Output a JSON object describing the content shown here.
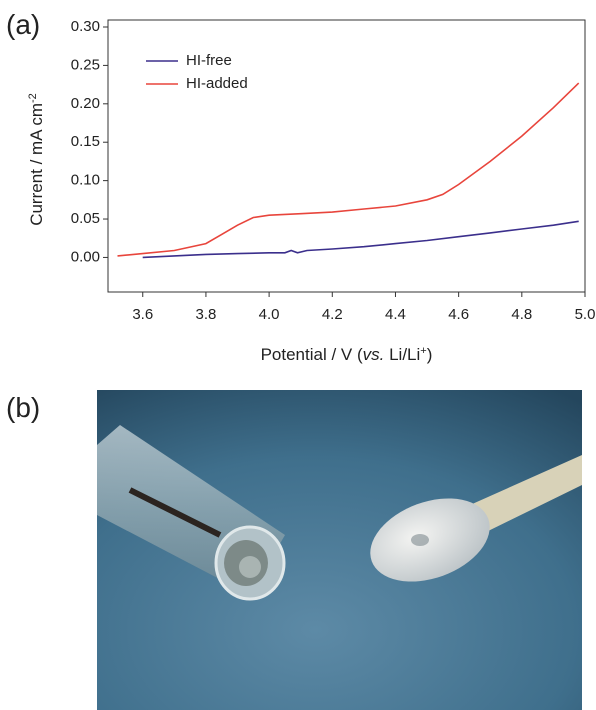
{
  "panel_labels": [
    "(a)",
    "(b)"
  ],
  "chart_data": {
    "type": "line",
    "ylabel": [
      {
        "text": "Current / mA cm",
        "style": "normal"
      },
      {
        "text": "-2",
        "style": "sup"
      }
    ],
    "xlabel": [
      {
        "text": "Potential / V (",
        "style": "normal"
      },
      {
        "text": "vs.",
        "style": "italic"
      },
      {
        "text": " Li/Li",
        "style": "normal"
      },
      {
        "text": "+",
        "style": "sup"
      },
      {
        "text": ")",
        "style": "normal"
      }
    ],
    "xlim": [
      3.49,
      5.0
    ],
    "ylim": [
      -0.045,
      0.3
    ],
    "xticks": [
      3.6,
      3.8,
      {
        "value": 4.0,
        "label": "4.0"
      },
      4.2,
      4.4,
      4.6,
      4.8,
      {
        "value": 5.0,
        "label": "5.0"
      }
    ],
    "yticks": [
      {
        "value": 0,
        "label": "0.00"
      },
      {
        "value": 0.05,
        "label": "0.05"
      },
      {
        "value": 0.1,
        "label": "0.10"
      },
      {
        "value": 0.15,
        "label": "0.15"
      },
      {
        "value": 0.2,
        "label": "0.20"
      },
      {
        "value": 0.25,
        "label": "0.25"
      },
      {
        "value": 0.3,
        "label": "0.30"
      }
    ],
    "grid": false,
    "legend": "upper-left",
    "series": [
      {
        "name": "HI-free",
        "color": "#3b2f8c",
        "x": [
          3.6,
          3.7,
          3.8,
          3.9,
          4.0,
          4.05,
          4.07,
          4.09,
          4.12,
          4.2,
          4.3,
          4.4,
          4.5,
          4.6,
          4.7,
          4.8,
          4.9,
          4.98
        ],
        "values": [
          0.0,
          0.002,
          0.004,
          0.005,
          0.006,
          0.006,
          0.009,
          0.006,
          0.009,
          0.011,
          0.014,
          0.018,
          0.022,
          0.027,
          0.032,
          0.037,
          0.042,
          0.047
        ]
      },
      {
        "name": "HI-added",
        "color": "#e8453c",
        "x": [
          3.52,
          3.6,
          3.7,
          3.8,
          3.85,
          3.9,
          3.95,
          4.0,
          4.1,
          4.2,
          4.3,
          4.4,
          4.5,
          4.55,
          4.6,
          4.7,
          4.8,
          4.9,
          4.98
        ],
        "values": [
          0.002,
          0.005,
          0.009,
          0.018,
          0.03,
          0.042,
          0.052,
          0.055,
          0.057,
          0.059,
          0.063,
          0.067,
          0.075,
          0.082,
          0.095,
          0.125,
          0.158,
          0.195,
          0.227
        ]
      }
    ]
  }
}
